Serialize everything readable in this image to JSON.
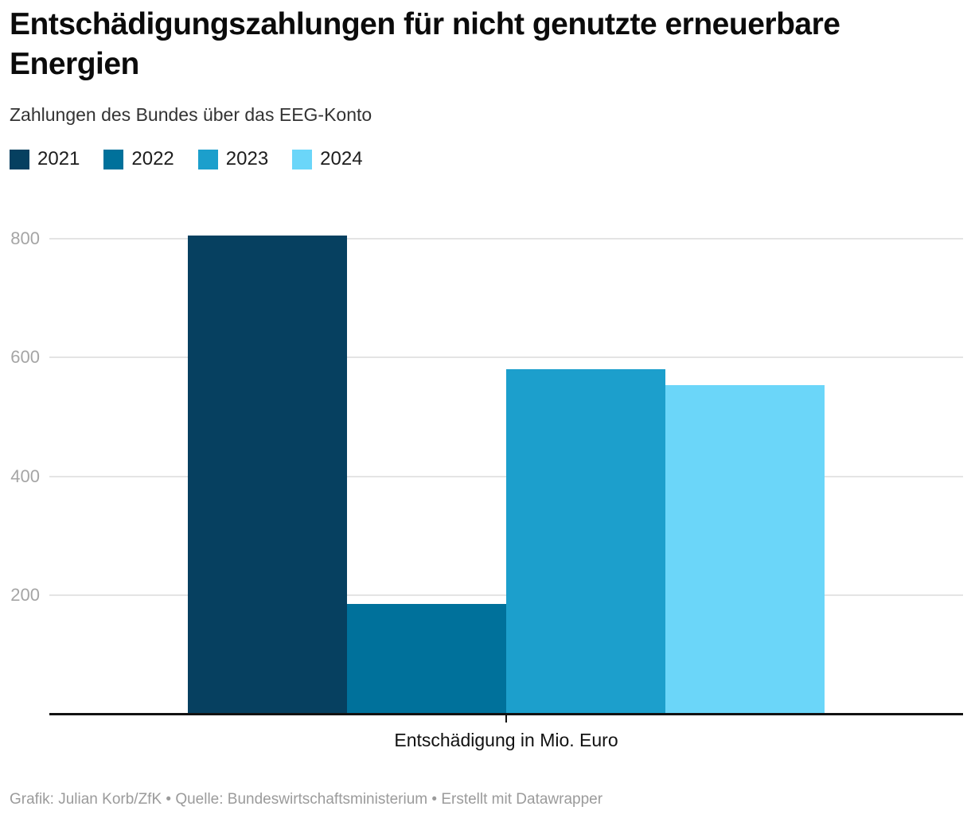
{
  "header": {
    "title": "Entschädigungszahlungen für nicht genutzte erneuerbare Energien",
    "subtitle": "Zahlungen des Bundes über das EEG-Konto"
  },
  "legend": {
    "items": [
      {
        "label": "2021",
        "color": "#064060"
      },
      {
        "label": "2022",
        "color": "#00719b"
      },
      {
        "label": "2023",
        "color": "#1c9fcc"
      },
      {
        "label": "2024",
        "color": "#6bd6f9"
      }
    ]
  },
  "chart_data": {
    "type": "bar",
    "title": "Entschädigungszahlungen für nicht genutzte erneuerbare Energien",
    "subtitle": "Zahlungen des Bundes über das EEG-Konto",
    "categories": [
      "Entschädigung in Mio. Euro"
    ],
    "series": [
      {
        "name": "2021",
        "color": "#064060",
        "values": [
          805
        ]
      },
      {
        "name": "2022",
        "color": "#00719b",
        "values": [
          185
        ]
      },
      {
        "name": "2023",
        "color": "#1c9fcc",
        "values": [
          580
        ]
      },
      {
        "name": "2024",
        "color": "#6bd6f9",
        "values": [
          553
        ]
      }
    ],
    "xlabel": "Entschädigung in Mio. Euro",
    "ylabel": "",
    "ylim": [
      0,
      830
    ],
    "yticks": [
      200,
      400,
      600,
      800
    ],
    "grid": "horizontal",
    "legend_position": "top-left",
    "unit": "Mio. Euro"
  },
  "axes": {
    "x_label": "Entschädigung in Mio. Euro",
    "y_ticks": [
      "200",
      "400",
      "600",
      "800"
    ]
  },
  "colors": {
    "gridline": "#e4e4e4",
    "axis_line": "#121212",
    "tick_label": "#a5a5a5"
  },
  "footer": {
    "text": "Grafik: Julian Korb/ZfK • Quelle: Bundeswirtschaftsministerium • Erstellt mit Datawrapper"
  }
}
